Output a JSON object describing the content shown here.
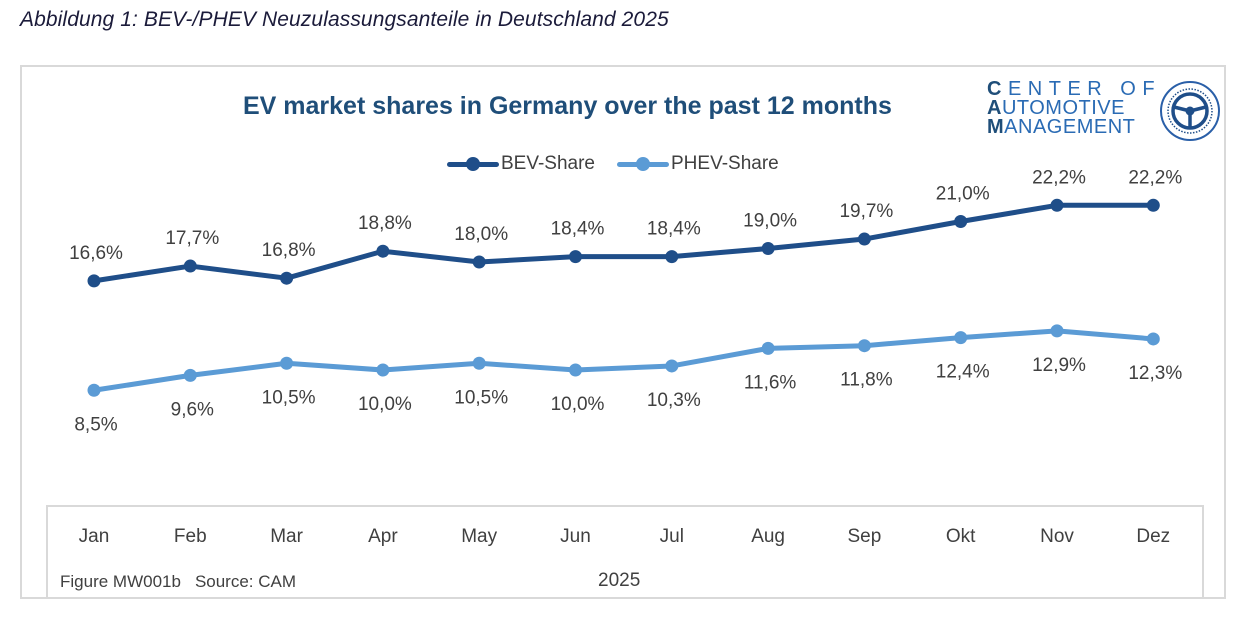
{
  "caption": "Abbildung 1: BEV-/PHEV Neuzulassungsanteile in Deutschland 2025",
  "logo": {
    "line1_initial": "C",
    "line1_rest": "ENTER OF",
    "line2_initial": "A",
    "line2_rest": "UTOMOTIVE",
    "line3_initial": "M",
    "line3_rest": "ANAGEMENT",
    "emblem_top_text": "Prof. Dr. Stefan Bratzel",
    "emblem_bottom_text": "www.auto-institut.de",
    "icon": "steering-wheel-icon"
  },
  "footer": {
    "figure_id": "Figure MW001b",
    "source": "Source: CAM"
  },
  "colors": {
    "bev": "#1f4e89",
    "phev": "#5b9bd5",
    "title": "#1f4e79",
    "label": "#404040",
    "frame": "#d9d9d9"
  },
  "chart_data": {
    "type": "line",
    "title": "EV market shares in Germany over the past 12 months",
    "xlabel": "2025",
    "ylabel": "",
    "categories": [
      "Jan",
      "Feb",
      "Mar",
      "Apr",
      "May",
      "Jun",
      "Jul",
      "Aug",
      "Sep",
      "Okt",
      "Nov",
      "Dez"
    ],
    "ylim": [
      0,
      30
    ],
    "grid": false,
    "legend_position": "top-center",
    "series": [
      {
        "name": "BEV-Share",
        "values": [
          16.6,
          17.7,
          16.8,
          18.8,
          18.0,
          18.4,
          18.4,
          19.0,
          19.7,
          21.0,
          22.2,
          22.2
        ],
        "labels": [
          "16,6%",
          "17,7%",
          "16,8%",
          "18,8%",
          "18,0%",
          "18,4%",
          "18,4%",
          "19,0%",
          "19,7%",
          "21,0%",
          "22,2%",
          "22,2%"
        ],
        "label_position": "above",
        "color": "#1f4e89"
      },
      {
        "name": "PHEV-Share",
        "values": [
          8.5,
          9.6,
          10.5,
          10.0,
          10.5,
          10.0,
          10.3,
          11.6,
          11.8,
          12.4,
          12.9,
          12.3
        ],
        "labels": [
          "8,5%",
          "9,6%",
          "10,5%",
          "10,0%",
          "10,5%",
          "10,0%",
          "10,3%",
          "11,6%",
          "11,8%",
          "12,4%",
          "12,9%",
          "12,3%"
        ],
        "label_position": "below",
        "color": "#5b9bd5"
      }
    ]
  }
}
